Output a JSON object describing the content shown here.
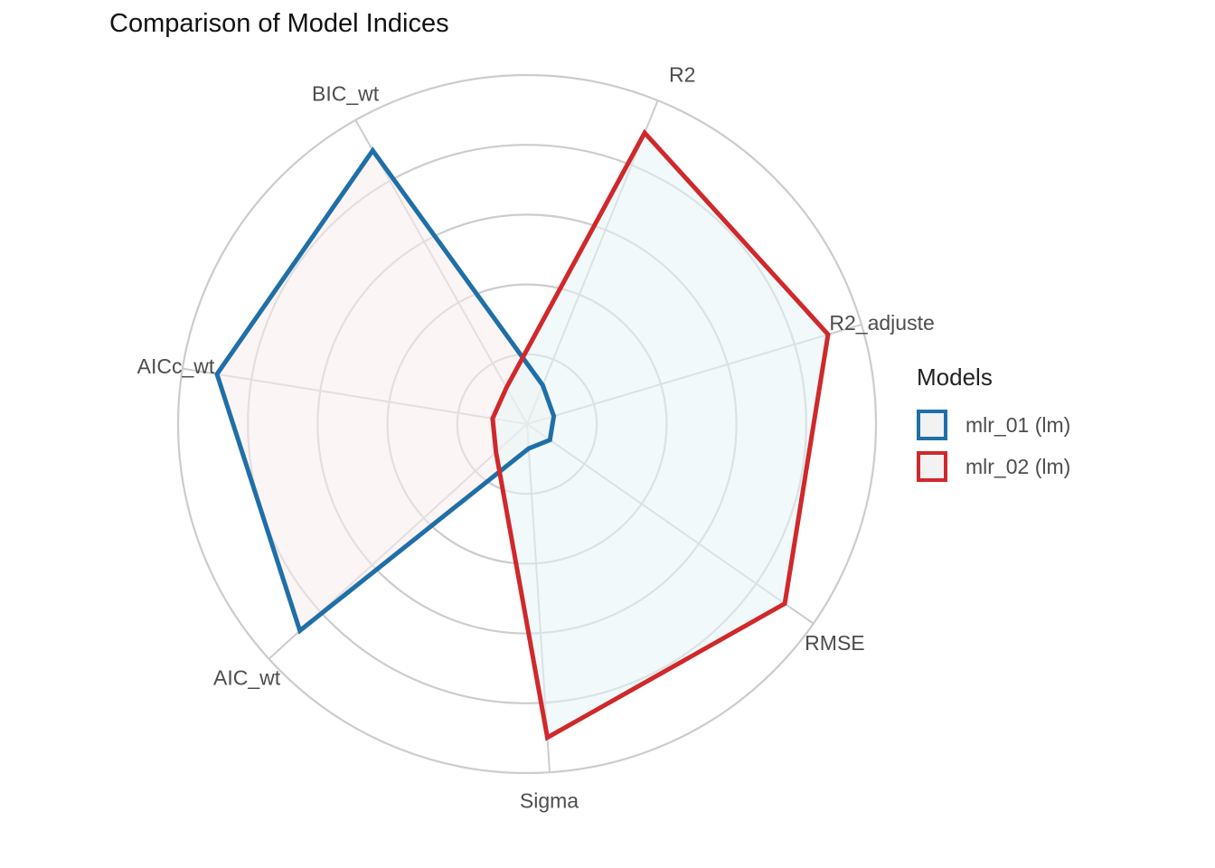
{
  "chart_data": {
    "type": "radar",
    "title": "Comparison of Model Indices",
    "axes": [
      "R2",
      "R2_adjusted",
      "RMSE",
      "Sigma",
      "AIC_wt",
      "AICc_wt",
      "BIC_wt"
    ],
    "axes_display": [
      "R2",
      "R2_adjuste",
      "RMSE",
      "Sigma",
      "AIC_wt",
      "AICc_wt",
      "BIC_wt"
    ],
    "rlim": [
      0,
      1
    ],
    "grid_rings": [
      0.2,
      0.4,
      0.6,
      0.8,
      1.0
    ],
    "grid": true,
    "legend_title": "Models",
    "legend_position": "right",
    "series": [
      {
        "name": "mlr_01 (lm)",
        "color": "#1f6fa8",
        "fill": "#f9ecec",
        "values": [
          0.12,
          0.08,
          0.08,
          0.07,
          0.88,
          0.9,
          0.9
        ]
      },
      {
        "name": "mlr_02 (lm)",
        "color": "#d0282b",
        "fill": "#e6f4f6",
        "values": [
          0.9,
          0.9,
          0.9,
          0.9,
          0.12,
          0.1,
          0.12
        ]
      }
    ]
  }
}
